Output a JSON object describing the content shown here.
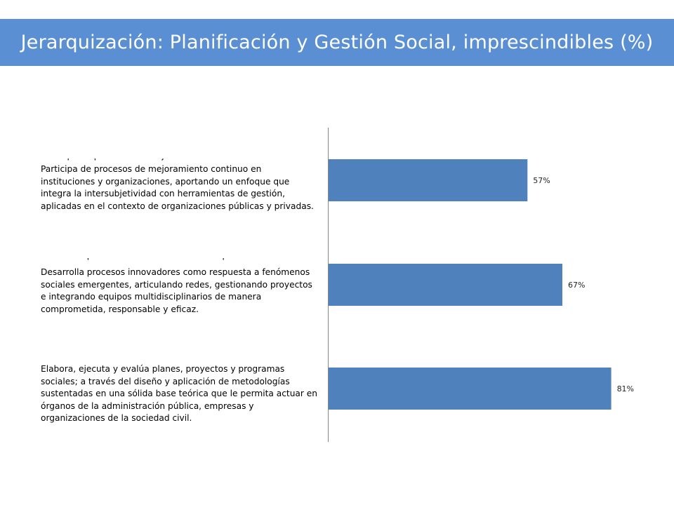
{
  "header": {
    "title": "Jerarquización: Planificación y Gestión Social, imprescindibles (%)"
  },
  "chart_data": {
    "type": "bar",
    "orientation": "horizontal",
    "title": "Jerarquización: Planificación y Gestión Social, imprescindibles (%)",
    "categories": [
      "Participa de procesos de mejoramiento continuo en instituciones y organizaciones, aportando un enfoque que integra la intersubjetividad con herramientas de gestión, aplicadas en el contexto de organizaciones públicas y privadas.",
      "Desarrolla procesos innovadores como respuesta a fenómenos sociales emergentes, articulando redes, gestionando proyectos e integrando equipos multidisciplinarios de manera comprometida, responsable y eficaz.",
      "Elabora, ejecuta y evalúa planes, proyectos y programas sociales; a través del diseño y aplicación de metodologías sustentadas en una sólida base teórica que le permita actuar en órganos de la administración pública, empresas y organizaciones de la sociedad civil."
    ],
    "values": [
      57,
      67,
      81
    ],
    "data_labels": [
      "57%",
      "67%",
      "81%"
    ],
    "xlim": [
      0,
      100
    ],
    "bar_color": "#4f81bd",
    "grid": false,
    "legend": "none"
  }
}
